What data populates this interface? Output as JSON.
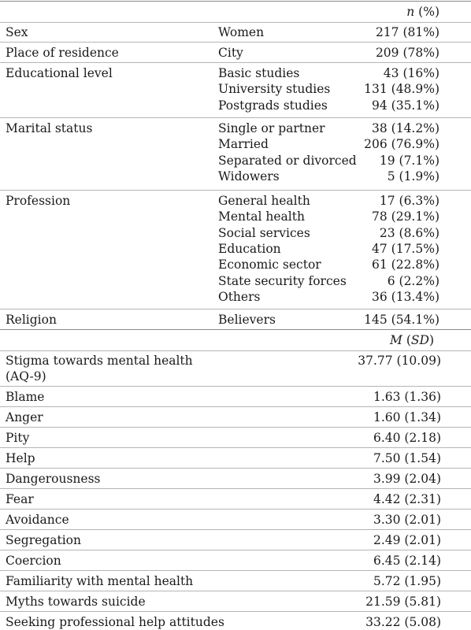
{
  "header_demo": {
    "n_label": "n",
    "pct_label": " (%)"
  },
  "demographics": [
    {
      "category": "Sex",
      "items": [
        {
          "label": "Women",
          "value": "217 (81%)"
        }
      ]
    },
    {
      "category": "Place of residence",
      "items": [
        {
          "label": "City",
          "value": "209 (78%)"
        }
      ]
    },
    {
      "category": "Educational level",
      "items": [
        {
          "label": "Basic studies",
          "value": "43 (16%)"
        },
        {
          "label": "University studies",
          "value": "131 (48.9%)"
        },
        {
          "label": "Postgrads studies",
          "value": "94 (35.1%)"
        }
      ]
    },
    {
      "category": "Marital status",
      "items": [
        {
          "label": "Single or partner",
          "value": "38 (14.2%)"
        },
        {
          "label": "Married",
          "value": "206 (76.9%)"
        },
        {
          "label": "Separated or divorced",
          "value": "19 (7.1%)"
        },
        {
          "label": "Widowers",
          "value": "5 (1.9%)"
        }
      ]
    },
    {
      "category": "Profession",
      "items": [
        {
          "label": "General health",
          "value": "17 (6.3%)"
        },
        {
          "label": "Mental health",
          "value": "78 (29.1%)"
        },
        {
          "label": "Social services",
          "value": "23 (8.6%)"
        },
        {
          "label": "Education",
          "value": "47 (17.5%)"
        },
        {
          "label": "Economic sector",
          "value": "61 (22.8%)"
        },
        {
          "label": "State security forces",
          "value": "6 (2.2%)"
        },
        {
          "label": "Others",
          "value": "36 (13.4%)"
        }
      ]
    },
    {
      "category": "Religion",
      "items": [
        {
          "label": "Believers",
          "value": "145 (54.1%)"
        }
      ]
    }
  ],
  "header_scales": {
    "m_label": "M",
    "sd_open": " (",
    "sd_label": "SD",
    "sd_close": ")"
  },
  "scales": [
    {
      "label": "Stigma towards mental health (AQ-9)",
      "value": "37.77 (10.09)"
    },
    {
      "label": "Blame",
      "value": "1.63 (1.36)"
    },
    {
      "label": "Anger",
      "value": "1.60 (1.34)"
    },
    {
      "label": "Pity",
      "value": "6.40 (2.18)"
    },
    {
      "label": "Help",
      "value": "7.50 (1.54)"
    },
    {
      "label": "Dangerousness",
      "value": "3.99 (2.04)"
    },
    {
      "label": "Fear",
      "value": "4.42 (2.31)"
    },
    {
      "label": "Avoidance",
      "value": "3.30 (2.01)"
    },
    {
      "label": "Segregation",
      "value": "2.49 (2.01)"
    },
    {
      "label": "Coercion",
      "value": "6.45 (2.14)"
    },
    {
      "label": "Familiarity with mental health",
      "value": "5.72 (1.95)"
    },
    {
      "label": "Myths towards suicide",
      "value": "21.59 (5.81)"
    },
    {
      "label": "Seeking professional help attitudes",
      "value": "33.22 (5.08)"
    }
  ]
}
